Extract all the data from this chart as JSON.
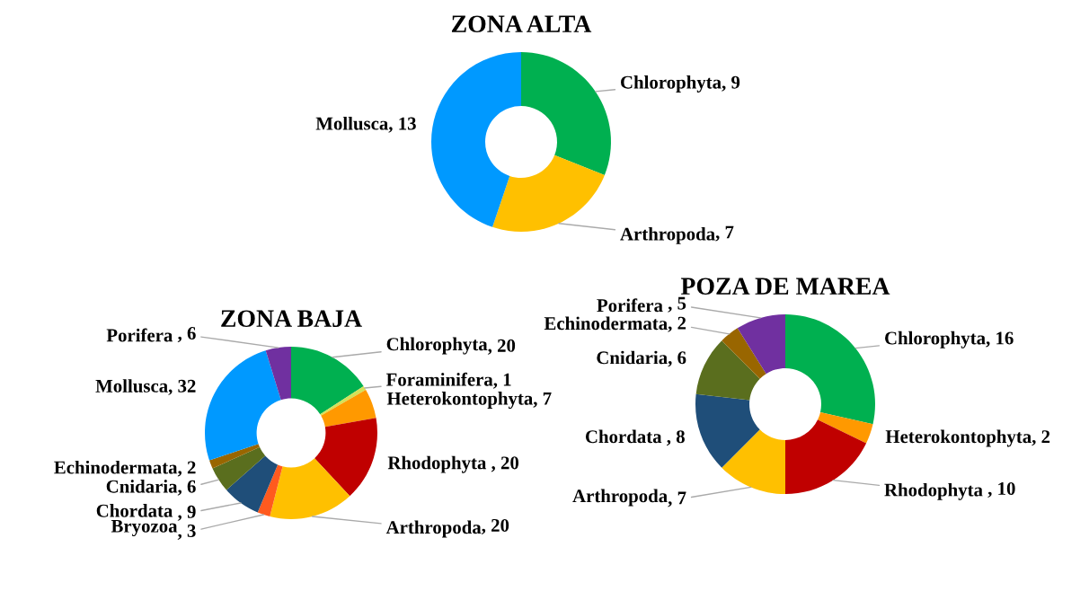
{
  "chart_data": [
    {
      "type": "donut",
      "title": "ZONA ALTA",
      "data_labels": true,
      "categories": [
        "Chlorophyta",
        "Arthropoda",
        "Mollusca"
      ],
      "values": [
        9,
        7,
        13
      ],
      "value_labels": [
        ", 9",
        ", 7",
        ", 13"
      ],
      "colors": [
        "#00b050",
        "#ffc000",
        "#0099ff"
      ]
    },
    {
      "type": "donut",
      "title": "ZONA BAJA",
      "data_labels": true,
      "categories": [
        "Chlorophyta",
        "Foraminifera",
        "Heterokontophyta",
        "Rhodophyta ",
        "Arthropoda",
        "Bryozoa",
        "Chordata ",
        "Cnidaria",
        "Echinodermata",
        "Mollusca",
        "Porifera "
      ],
      "values": [
        20,
        1,
        7,
        20,
        20,
        3,
        9,
        6,
        2,
        32,
        6
      ],
      "value_labels": [
        ", 20",
        ", 1",
        ", 7",
        ", 20",
        ", 20",
        ", 3",
        ", 9",
        ", 6",
        ", 2",
        ", 32",
        ", 6"
      ],
      "colors": [
        "#00b050",
        "#d4e157",
        "#ff9900",
        "#c00000",
        "#ffc000",
        "#ff5a1e",
        "#1f4e79",
        "#5a6e1e",
        "#996600",
        "#0099ff",
        "#7030a0"
      ]
    },
    {
      "type": "donut",
      "title": "POZA DE MAREA",
      "data_labels": true,
      "categories": [
        "Chlorophyta",
        "Heterokontophyta",
        "Rhodophyta ",
        "Arthropoda",
        "Chordata ",
        "Cnidaria",
        "Echinodermata",
        "Porifera "
      ],
      "values": [
        16,
        2,
        10,
        7,
        8,
        6,
        2,
        5
      ],
      "value_labels": [
        ", 16",
        ", 2",
        ", 10",
        ", 7",
        ", 8",
        ", 6",
        ", 2",
        ", 5"
      ],
      "colors": [
        "#00b050",
        "#ff9900",
        "#c00000",
        "#ffc000",
        "#1f4e79",
        "#5a6e1e",
        "#996600",
        "#7030a0"
      ]
    }
  ]
}
